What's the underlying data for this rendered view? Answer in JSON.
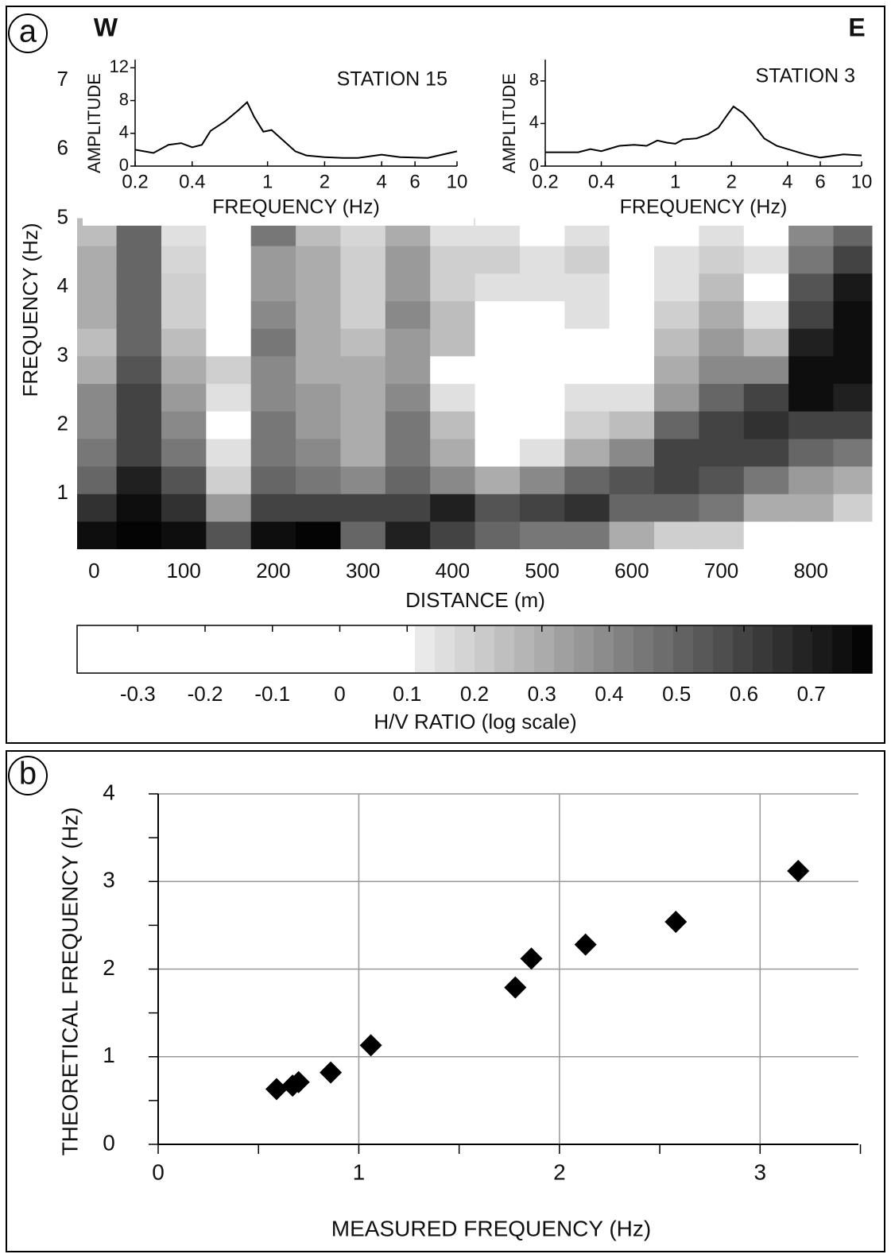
{
  "chart_data": [
    {
      "type": "heatmap",
      "panel_label": "a",
      "annotations": [
        "W",
        "E"
      ],
      "xlabel": "DISTANCE (m)",
      "ylabel": "FREQUENCY (Hz)",
      "x": [
        0,
        50,
        100,
        150,
        200,
        250,
        300,
        350,
        400,
        450,
        500,
        550,
        600,
        650,
        700,
        750,
        800,
        850
      ],
      "y": [
        0.4,
        0.8,
        1.2,
        1.6,
        2.0,
        2.4,
        2.8,
        3.2,
        3.6,
        4.0,
        4.4,
        4.8
      ],
      "values": [
        [
          0.75,
          0.65,
          0.5,
          0.45,
          0.4,
          0.4,
          0.3,
          0.25,
          0.3,
          0.3,
          0.3,
          0.25
        ],
        [
          0.78,
          0.75,
          0.7,
          0.6,
          0.6,
          0.6,
          0.55,
          0.5,
          0.5,
          0.5,
          0.5,
          0.5
        ],
        [
          0.75,
          0.65,
          0.55,
          0.45,
          0.4,
          0.35,
          0.3,
          0.25,
          0.2,
          0.2,
          0.18,
          0.15
        ],
        [
          0.55,
          0.35,
          0.2,
          0.15,
          0.1,
          0.15,
          0.2,
          0,
          -0.1,
          -0.1,
          -0.1,
          -0.1
        ],
        [
          0.75,
          0.6,
          0.5,
          0.45,
          0.45,
          0.4,
          0.4,
          0.45,
          0.4,
          0.35,
          0.35,
          0.45
        ],
        [
          0.78,
          0.6,
          0.45,
          0.4,
          0.35,
          0.35,
          0.3,
          0.3,
          0.3,
          0.3,
          0.3,
          0.25
        ],
        [
          0.5,
          0.6,
          0.4,
          0.3,
          0.3,
          0.3,
          0.3,
          0.25,
          0.2,
          0.2,
          0.2,
          0.18
        ],
        [
          0.7,
          0.6,
          0.5,
          0.45,
          0.45,
          0.4,
          0.35,
          0.35,
          0.4,
          0.35,
          0.35,
          0.3
        ],
        [
          0.6,
          0.7,
          0.4,
          0.3,
          0.25,
          0.15,
          0.1,
          0.25,
          0.25,
          0.2,
          0.2,
          0.15
        ],
        [
          0.5,
          0.55,
          0.3,
          0.1,
          0,
          -0.1,
          -0.1,
          -0.1,
          0.1,
          0.15,
          0.2,
          0.15
        ],
        [
          0.45,
          0.6,
          0.4,
          0.15,
          0.1,
          0,
          0,
          0,
          0,
          0.15,
          0.15,
          0.1
        ],
        [
          0.45,
          0.65,
          0.5,
          0.3,
          0.2,
          0.15,
          0,
          0,
          0.15,
          0.15,
          0.2,
          0.15
        ],
        [
          0.3,
          0.5,
          0.55,
          0.4,
          0.25,
          0.15,
          0.05,
          0,
          0,
          0,
          0,
          0
        ],
        [
          0.2,
          0.5,
          0.6,
          0.6,
          0.5,
          0.35,
          0.3,
          0.25,
          0.2,
          0.15,
          0.15,
          0.1
        ],
        [
          0.2,
          0.45,
          0.55,
          0.6,
          0.6,
          0.5,
          0.4,
          0.35,
          0.3,
          0.25,
          0.2,
          0.15
        ],
        [
          0.1,
          0.3,
          0.45,
          0.6,
          0.65,
          0.6,
          0.4,
          0.25,
          0.15,
          0,
          0.15,
          0.1
        ],
        [
          0.1,
          0.3,
          0.35,
          0.5,
          0.6,
          0.75,
          0.75,
          0.7,
          0.6,
          0.55,
          0.45,
          0.4
        ],
        [
          0.05,
          0.2,
          0.3,
          0.45,
          0.6,
          0.7,
          0.75,
          0.75,
          0.75,
          0.72,
          0.6,
          0.5
        ]
      ],
      "xlim": [
        -19,
        868
      ],
      "xticks": [
        0,
        100,
        200,
        300,
        400,
        500,
        600,
        700,
        800
      ],
      "ylim": [
        0.15,
        7.07
      ],
      "yticks": [
        1,
        2,
        3,
        4,
        5,
        6,
        7
      ],
      "colorbar": {
        "label": "H/V RATIO (log scale)",
        "lim": [
          -0.39,
          0.79
        ],
        "ticks": [
          -0.3,
          -0.2,
          -0.1,
          0,
          0.1,
          0.2,
          0.3,
          0.4,
          0.5,
          0.6,
          0.7
        ],
        "gray_range": [
          0.12,
          0.79
        ]
      }
    },
    {
      "type": "line",
      "title": "STATION 15",
      "xlabel": "FREQUENCY (Hz)",
      "ylabel": "AMPLITUDE",
      "xscale": "log",
      "color": "#000000",
      "x": [
        0.2,
        0.25,
        0.3,
        0.35,
        0.4,
        0.45,
        0.5,
        0.6,
        0.7,
        0.78,
        0.85,
        0.95,
        1.05,
        1.2,
        1.4,
        1.6,
        2,
        2.5,
        3,
        4,
        5,
        7,
        8,
        10
      ],
      "values": [
        2.0,
        1.6,
        2.6,
        2.8,
        2.3,
        2.6,
        4.3,
        5.5,
        6.8,
        7.8,
        6.0,
        4.2,
        4.4,
        3.2,
        1.8,
        1.3,
        1.1,
        1.0,
        1.0,
        1.4,
        1.1,
        1.0,
        1.3,
        1.8
      ],
      "xlim": [
        0.2,
        10
      ],
      "xticks": [
        0.2,
        0.4,
        1,
        2,
        4,
        6,
        10
      ],
      "ylim": [
        0,
        13
      ],
      "yticks": [
        0,
        4,
        8,
        12
      ]
    },
    {
      "type": "line",
      "title": "STATION 3",
      "xlabel": "FREQUENCY (Hz)",
      "ylabel": "AMPLITUDE",
      "xscale": "log",
      "color": "#000000",
      "x": [
        0.2,
        0.3,
        0.35,
        0.4,
        0.5,
        0.6,
        0.7,
        0.8,
        0.9,
        1,
        1.1,
        1.3,
        1.5,
        1.7,
        1.9,
        2.05,
        2.3,
        2.6,
        3,
        3.5,
        4,
        5,
        6,
        8,
        10
      ],
      "values": [
        1.3,
        1.3,
        1.6,
        1.4,
        1.9,
        2.0,
        1.9,
        2.4,
        2.2,
        2.1,
        2.5,
        2.6,
        3.0,
        3.6,
        4.8,
        5.6,
        5.0,
        4.0,
        2.6,
        1.9,
        1.6,
        1.1,
        0.8,
        1.1,
        1.0
      ],
      "xlim": [
        0.2,
        10
      ],
      "xticks": [
        0.2,
        0.4,
        1,
        2,
        4,
        6,
        10
      ],
      "ylim": [
        0,
        10
      ],
      "yticks": [
        0,
        4,
        8
      ]
    },
    {
      "type": "scatter",
      "panel_label": "b",
      "xlabel": "MEASURED FREQUENCY (Hz)",
      "ylabel": "THEORETICAL FREQUENCY (Hz)",
      "grid": true,
      "color": "#000000",
      "x": [
        0.59,
        0.67,
        0.7,
        0.86,
        1.06,
        1.78,
        1.86,
        2.13,
        2.58,
        3.19
      ],
      "values": [
        0.63,
        0.67,
        0.71,
        0.82,
        1.13,
        1.79,
        2.12,
        2.28,
        2.54,
        3.12
      ],
      "xlim": [
        0,
        3.49
      ],
      "xticks": [
        0,
        1,
        2,
        3
      ],
      "minor_xticks": [
        0.5,
        1.5,
        2.5,
        3.5
      ],
      "ylim": [
        0,
        4
      ],
      "yticks": [
        0,
        1,
        2,
        3,
        4
      ],
      "minor_yticks": [
        0.5,
        1.5,
        2.5,
        3.5
      ]
    }
  ]
}
